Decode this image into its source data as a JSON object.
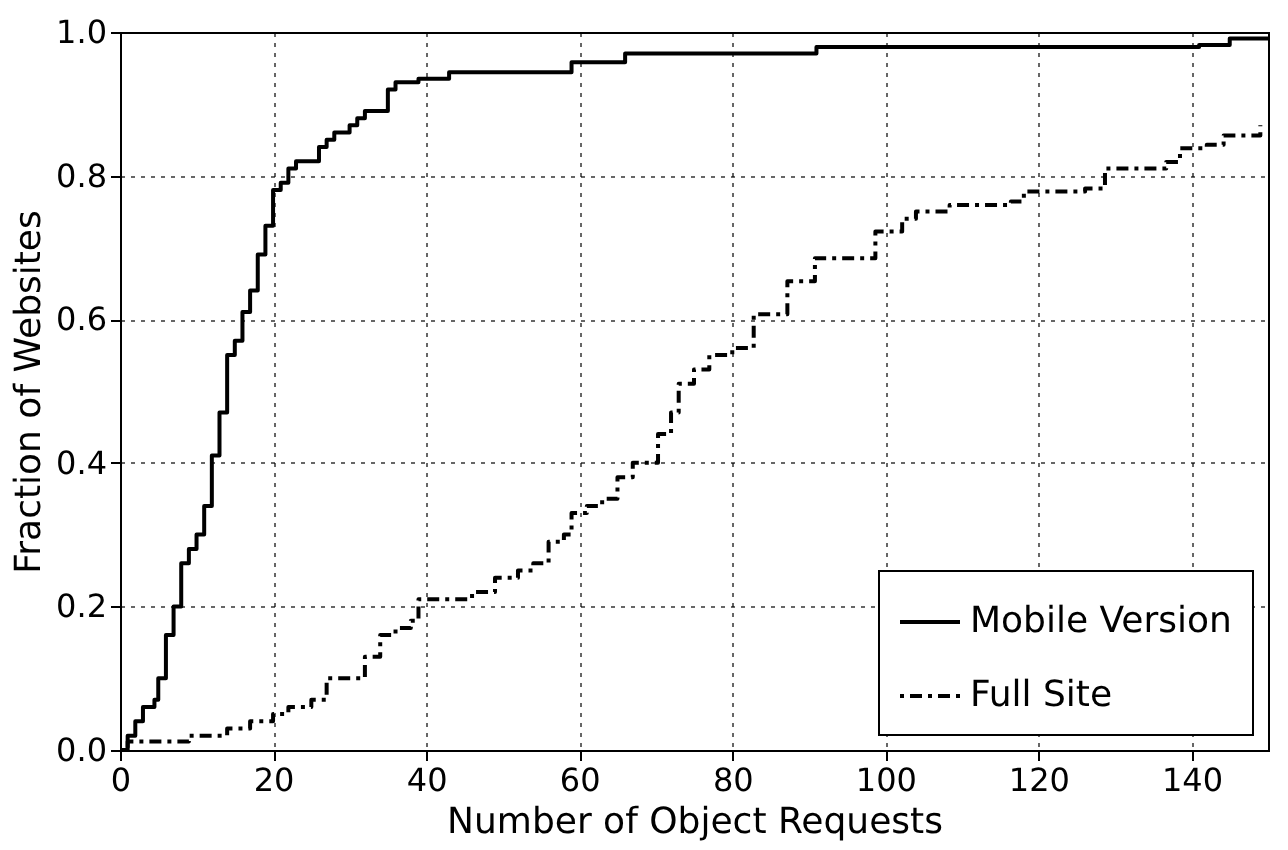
{
  "chart_data": {
    "type": "step",
    "xlabel": "Number of Object Requests",
    "ylabel": "Fraction of Websites",
    "xlim": [
      0,
      150
    ],
    "ylim": [
      0,
      1
    ],
    "xticks": [
      0,
      20,
      40,
      60,
      80,
      100,
      120,
      140
    ],
    "yticks": [
      {
        "value": 0,
        "label": "0.0"
      },
      {
        "value": 0.2,
        "label": "0.2"
      },
      {
        "value": 0.4,
        "label": "0.4"
      },
      {
        "value": 0.6,
        "label": "0.6"
      },
      {
        "value": 0.8,
        "label": "0.8"
      },
      {
        "value": 1,
        "label": "1.0"
      }
    ],
    "grid": true,
    "legend": "bottom right",
    "series": [
      {
        "name": "Mobile Version",
        "color": "#000000",
        "line_style": "solid",
        "x": [
          0,
          1,
          2,
          3,
          4.5,
          5,
          6,
          7,
          8,
          9,
          10,
          11,
          12,
          13,
          14,
          15,
          16,
          17,
          18,
          19,
          20,
          21,
          22,
          23,
          26,
          27,
          28,
          30,
          31,
          32,
          35,
          36,
          39,
          43,
          59,
          66,
          91,
          141,
          145,
          150
        ],
        "values": [
          0,
          0.02,
          0.04,
          0.06,
          0.07,
          0.1,
          0.16,
          0.2,
          0.26,
          0.28,
          0.3,
          0.34,
          0.41,
          0.47,
          0.55,
          0.57,
          0.61,
          0.64,
          0.69,
          0.73,
          0.78,
          0.79,
          0.81,
          0.82,
          0.84,
          0.85,
          0.86,
          0.87,
          0.88,
          0.89,
          0.92,
          0.93,
          0.935,
          0.944,
          0.958,
          0.97,
          0.979,
          0.982,
          0.991,
          0.991
        ]
      },
      {
        "name": "Full Site",
        "color": "#000000",
        "line_style": "dotted",
        "x": [
          0,
          1,
          9,
          14,
          17,
          20,
          22,
          25,
          27,
          31,
          32,
          34,
          36,
          38,
          39,
          44,
          46,
          49,
          52,
          54,
          56,
          58,
          59,
          61,
          63,
          65,
          67,
          69,
          70.3,
          72,
          73,
          75,
          77,
          80,
          82.8,
          87.2,
          90.8,
          95.2,
          98.7,
          102.2,
          104,
          108.4,
          116.4,
          118.1,
          126.1,
          128.7,
          136.7,
          138.5,
          142,
          144.2,
          149
        ],
        "values": [
          0,
          0.012,
          0.02,
          0.03,
          0.04,
          0.05,
          0.06,
          0.07,
          0.1,
          0.1,
          0.13,
          0.16,
          0.17,
          0.18,
          0.21,
          0.21,
          0.22,
          0.24,
          0.25,
          0.26,
          0.29,
          0.3,
          0.33,
          0.34,
          0.35,
          0.38,
          0.4,
          0.4,
          0.44,
          0.47,
          0.51,
          0.53,
          0.55,
          0.56,
          0.607,
          0.653,
          0.685,
          0.685,
          0.722,
          0.74,
          0.75,
          0.759,
          0.764,
          0.778,
          0.782,
          0.81,
          0.819,
          0.838,
          0.843,
          0.856,
          0.87
        ]
      }
    ]
  }
}
